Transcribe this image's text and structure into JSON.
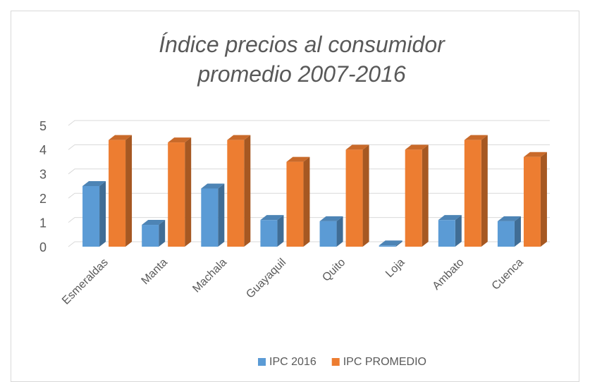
{
  "chart_data": {
    "type": "bar3d",
    "title": "Índice precios al consumidor promedio 2007-2016",
    "categories": [
      "Esmeraldas",
      "Manta",
      "Machala",
      "Guayaquil",
      "Quito",
      "Loja",
      "Ambato",
      "Cuenca"
    ],
    "series": [
      {
        "name": "IPC 2016",
        "color": "#5b9bd5",
        "values": [
          2.5,
          0.9,
          2.4,
          1.1,
          1.05,
          0.05,
          1.1,
          1.05
        ]
      },
      {
        "name": "IPC PROMEDIO",
        "color": "#ed7d31",
        "values": [
          4.4,
          4.3,
          4.4,
          3.5,
          4.0,
          4.0,
          4.4,
          3.7
        ]
      }
    ],
    "ylim": [
      0,
      5
    ],
    "yticks": [
      0,
      1,
      2,
      3,
      4,
      5
    ],
    "grid": true,
    "legend": "bottom"
  }
}
